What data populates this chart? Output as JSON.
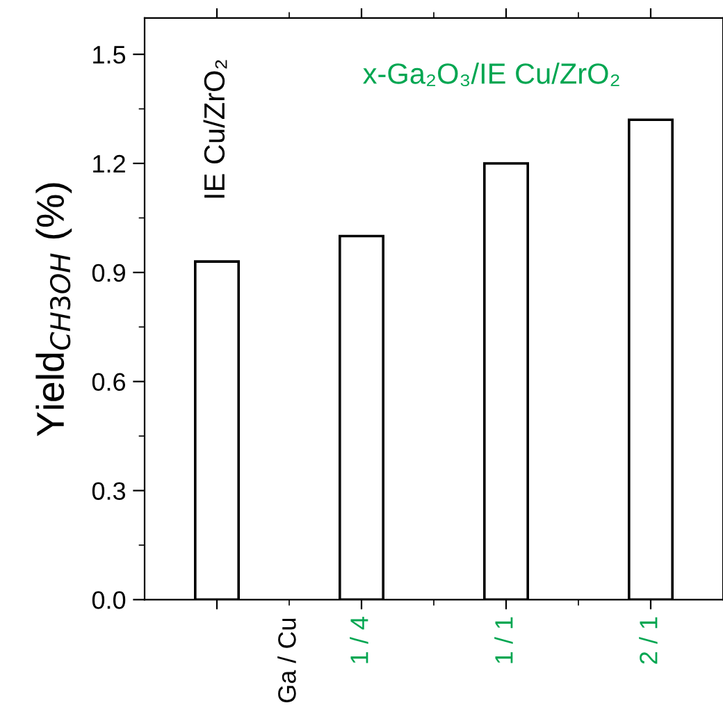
{
  "chart_data": {
    "type": "bar",
    "ylabel": "Yield$_{CH3OH}$ (%)",
    "categories": [
      null,
      "1 / 4",
      "1 / 1",
      "2 / 1"
    ],
    "values": [
      0.93,
      1.0,
      1.2,
      1.32
    ],
    "color": "#ffffff",
    "ylim": [
      0,
      1.6
    ],
    "yticks": [
      "0.0",
      0.3,
      0.6,
      0.9,
      1.2,
      1.5
    ],
    "grid": false,
    "legend": false,
    "annotations": [
      "IE Cu/ZrO₂",
      "x-Ga₂O₃/IE Cu/ZrO₂",
      "Ga / Cu"
    ]
  }
}
